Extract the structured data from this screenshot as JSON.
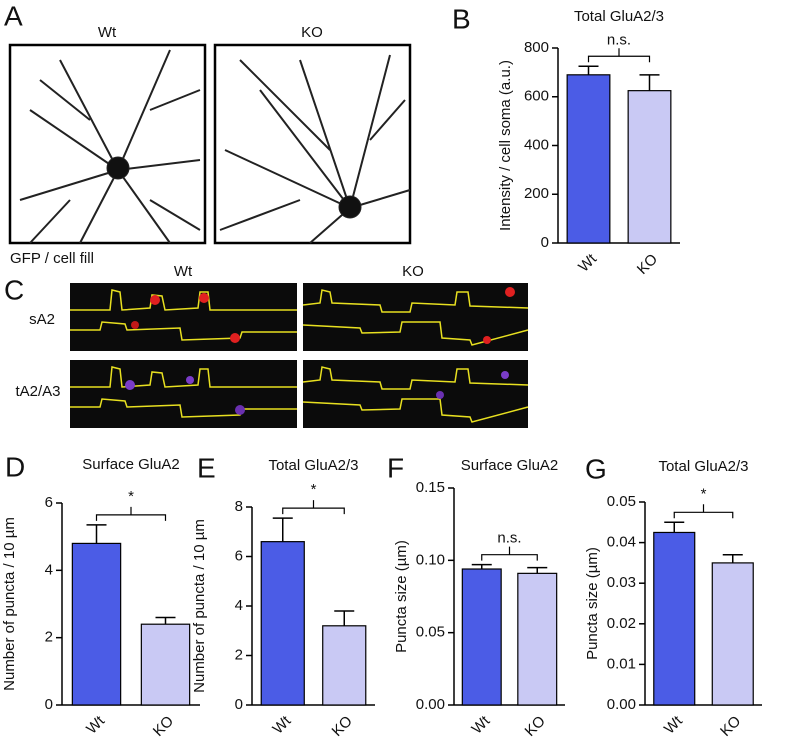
{
  "panel_a": {
    "letter": "A",
    "labels": [
      "Wt",
      "KO"
    ],
    "caption": "GFP / cell fill"
  },
  "panel_c": {
    "letter": "C",
    "columns": [
      "Wt",
      "KO"
    ],
    "rows": [
      "sA2",
      "tA2/A3"
    ]
  },
  "chart_data": [
    {
      "type": "bar",
      "panel": "B",
      "title": "Total GluA2/3",
      "y_label": "Intensity / cell soma (a.u.)",
      "categories": [
        "Wt",
        "KO"
      ],
      "values": [
        690,
        625
      ],
      "errors": [
        35,
        65
      ],
      "colors": [
        "#4b5ce6",
        "#c9c9f4"
      ],
      "ylim": [
        0,
        800
      ],
      "yticks": [
        0,
        200,
        400,
        600,
        800
      ],
      "annotation": "n.s."
    },
    {
      "type": "bar",
      "panel": "D",
      "title": "Surface GluA2",
      "y_label": "Number of puncta / 10 µm",
      "categories": [
        "Wt",
        "KO"
      ],
      "values": [
        4.8,
        2.4
      ],
      "errors": [
        0.55,
        0.2
      ],
      "colors": [
        "#4b5ce6",
        "#c9c9f4"
      ],
      "ylim": [
        0,
        6
      ],
      "yticks": [
        0,
        2,
        4,
        6
      ],
      "annotation": "*"
    },
    {
      "type": "bar",
      "panel": "E",
      "title": "Total GluA2/3",
      "y_label": "Number of puncta / 10 µm",
      "categories": [
        "Wt",
        "KO"
      ],
      "values": [
        6.6,
        3.2
      ],
      "errors": [
        0.95,
        0.6
      ],
      "colors": [
        "#4b5ce6",
        "#c9c9f4"
      ],
      "ylim": [
        0,
        8
      ],
      "yticks": [
        0,
        2,
        4,
        6,
        8
      ],
      "annotation": "*"
    },
    {
      "type": "bar",
      "panel": "F",
      "title": "Surface GluA2",
      "y_label": "Puncta size (µm)",
      "categories": [
        "Wt",
        "KO"
      ],
      "values": [
        0.094,
        0.091
      ],
      "errors": [
        0.003,
        0.004
      ],
      "colors": [
        "#4b5ce6",
        "#c9c9f4"
      ],
      "ylim": [
        0,
        0.15
      ],
      "yticks": [
        {
          "value": 0,
          "label": "0.00"
        },
        {
          "value": 0.05,
          "label": "0.05"
        },
        {
          "value": 0.1,
          "label": "0.10"
        },
        {
          "value": 0.15,
          "label": "0.15"
        }
      ],
      "annotation": "n.s."
    },
    {
      "type": "bar",
      "panel": "G",
      "title": "Total GluA2/3",
      "y_label": "Puncta size (µm)",
      "categories": [
        "Wt",
        "KO"
      ],
      "values": [
        0.0425,
        0.035
      ],
      "errors": [
        0.0025,
        0.002
      ],
      "colors": [
        "#4b5ce6",
        "#c9c9f4"
      ],
      "ylim": [
        0,
        0.05
      ],
      "yticks": [
        {
          "value": 0,
          "label": "0.00"
        },
        {
          "value": 0.01,
          "label": "0.01"
        },
        {
          "value": 0.02,
          "label": "0.02"
        },
        {
          "value": 0.03,
          "label": "0.03"
        },
        {
          "value": 0.04,
          "label": "0.04"
        },
        {
          "value": 0.05,
          "label": "0.05"
        }
      ],
      "annotation": "*"
    }
  ]
}
